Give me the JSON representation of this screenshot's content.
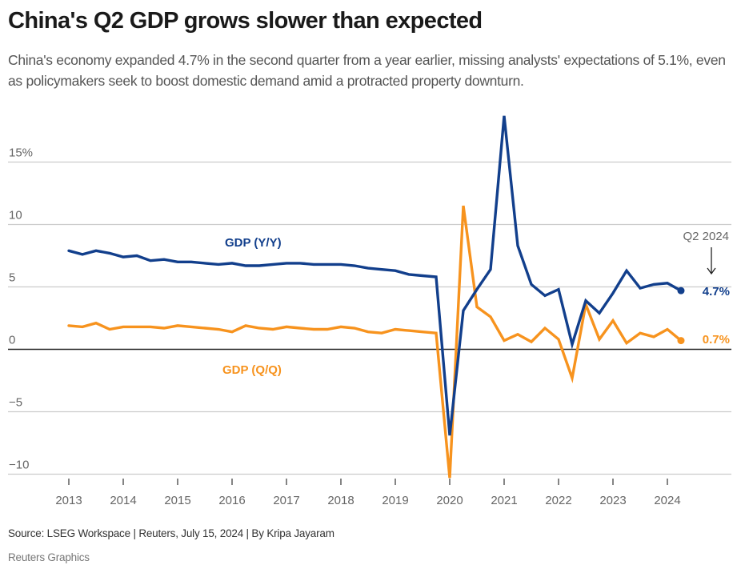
{
  "header": {
    "title": "China's Q2 GDP grows slower than expected",
    "subtitle": "China's economy expanded 4.7% in the second quarter from a year earlier, missing analysts' expectations of 5.1%, even as policymakers seek to boost domestic demand amid a protracted property downturn."
  },
  "footer": {
    "source": "Source: LSEG Workspace | Reuters, July 15, 2024 | By Kripa Jayaram",
    "credit": "Reuters Graphics"
  },
  "colors": {
    "yoy": "#123f8c",
    "qoq": "#f7931e",
    "grid": "#cccccc",
    "zero_line": "#222222"
  },
  "chart_data": {
    "type": "line",
    "title": "China's Q2 GDP grows slower than expected",
    "xlabel": "",
    "ylabel": "",
    "ylim": [
      -11,
      19
    ],
    "yticks": [
      -10,
      -5,
      0,
      5,
      10,
      15
    ],
    "ytick_labels": [
      "−10",
      "−5",
      "0",
      "5",
      "10",
      "15%"
    ],
    "grid": true,
    "xticks": [
      "2013",
      "2014",
      "2015",
      "2016",
      "2017",
      "2018",
      "2019",
      "2020",
      "2021",
      "2022",
      "2023",
      "2024"
    ],
    "x": [
      "2013Q1",
      "2013Q2",
      "2013Q3",
      "2013Q4",
      "2014Q1",
      "2014Q2",
      "2014Q3",
      "2014Q4",
      "2015Q1",
      "2015Q2",
      "2015Q3",
      "2015Q4",
      "2016Q1",
      "2016Q2",
      "2016Q3",
      "2016Q4",
      "2017Q1",
      "2017Q2",
      "2017Q3",
      "2017Q4",
      "2018Q1",
      "2018Q2",
      "2018Q3",
      "2018Q4",
      "2019Q1",
      "2019Q2",
      "2019Q3",
      "2019Q4",
      "2020Q1",
      "2020Q2",
      "2020Q3",
      "2020Q4",
      "2021Q1",
      "2021Q2",
      "2021Q3",
      "2021Q4",
      "2022Q1",
      "2022Q2",
      "2022Q3",
      "2022Q4",
      "2023Q1",
      "2023Q2",
      "2023Q3",
      "2023Q4",
      "2024Q1",
      "2024Q2"
    ],
    "series": [
      {
        "name": "GDP (Y/Y)",
        "color": "#123f8c",
        "values": [
          7.9,
          7.6,
          7.9,
          7.7,
          7.4,
          7.5,
          7.1,
          7.2,
          7.0,
          7.0,
          6.9,
          6.8,
          6.9,
          6.7,
          6.7,
          6.8,
          6.9,
          6.9,
          6.8,
          6.8,
          6.8,
          6.7,
          6.5,
          6.4,
          6.3,
          6.0,
          5.9,
          5.8,
          -6.9,
          3.1,
          4.8,
          6.4,
          18.7,
          8.3,
          5.2,
          4.3,
          4.8,
          0.4,
          3.9,
          2.9,
          4.5,
          6.3,
          4.9,
          5.2,
          5.3,
          4.7
        ],
        "end_label": "4.7%"
      },
      {
        "name": "GDP (Q/Q)",
        "color": "#f7931e",
        "values": [
          1.9,
          1.8,
          2.1,
          1.6,
          1.8,
          1.8,
          1.8,
          1.7,
          1.9,
          1.8,
          1.7,
          1.6,
          1.4,
          1.9,
          1.7,
          1.6,
          1.8,
          1.7,
          1.6,
          1.6,
          1.8,
          1.7,
          1.4,
          1.3,
          1.6,
          1.5,
          1.4,
          1.3,
          -10.3,
          11.5,
          3.4,
          2.6,
          0.7,
          1.2,
          0.6,
          1.7,
          0.8,
          -2.3,
          3.6,
          0.8,
          2.3,
          0.5,
          1.3,
          1.0,
          1.6,
          0.7
        ],
        "end_label": "0.7%"
      }
    ],
    "annotations": [
      {
        "text": "Q2 2024",
        "target": "2024Q2",
        "arrow": "down"
      }
    ],
    "legend": "inline labels"
  }
}
